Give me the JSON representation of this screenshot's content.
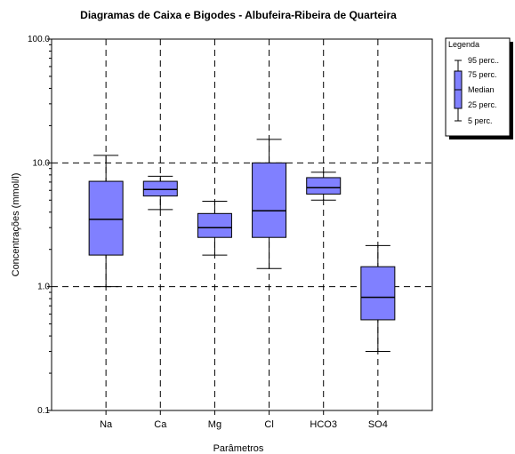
{
  "chart_data": {
    "type": "boxplot",
    "title": "Diagramas de Caixa e Bigodes - Albufeira-Ribeira de Quarteira",
    "xlabel": "Parâmetros",
    "ylabel": "Concentrações (mmol/l)",
    "y_scale": "log",
    "ylim": [
      0.1,
      100.0
    ],
    "y_ticks": [
      {
        "value": 0.1,
        "label": "0.1"
      },
      {
        "value": 1.0,
        "label": "1.0"
      },
      {
        "value": 10.0,
        "label": "10.0"
      },
      {
        "value": 100.0,
        "label": "100.0"
      }
    ],
    "grid": "dashed",
    "box_color": "#8080ff",
    "categories": [
      "Na",
      "Ca",
      "Mg",
      "Cl",
      "HCO3",
      "SO4"
    ],
    "boxes": [
      {
        "category": "Na",
        "p5": 1.0,
        "p25": 1.8,
        "median": 3.5,
        "p75": 7.1,
        "p95": 11.5
      },
      {
        "category": "Ca",
        "p5": 4.2,
        "p25": 5.4,
        "median": 6.1,
        "p75": 7.1,
        "p95": 7.8
      },
      {
        "category": "Mg",
        "p5": 1.8,
        "p25": 2.5,
        "median": 3.0,
        "p75": 3.9,
        "p95": 4.9
      },
      {
        "category": "Cl",
        "p5": 1.4,
        "p25": 2.5,
        "median": 4.1,
        "p75": 10.0,
        "p95": 15.5
      },
      {
        "category": "HCO3",
        "p5": 5.0,
        "p25": 5.6,
        "median": 6.3,
        "p75": 7.6,
        "p95": 8.4
      },
      {
        "category": "SO4",
        "p5": 0.3,
        "p25": 0.54,
        "median": 0.82,
        "p75": 1.45,
        "p95": 2.15
      }
    ],
    "legend": {
      "title": "Legenda",
      "placement": "top-right",
      "entries": [
        "95 perc..",
        "75 perc.",
        "Median",
        "25 perc.",
        "5 perc."
      ]
    }
  }
}
